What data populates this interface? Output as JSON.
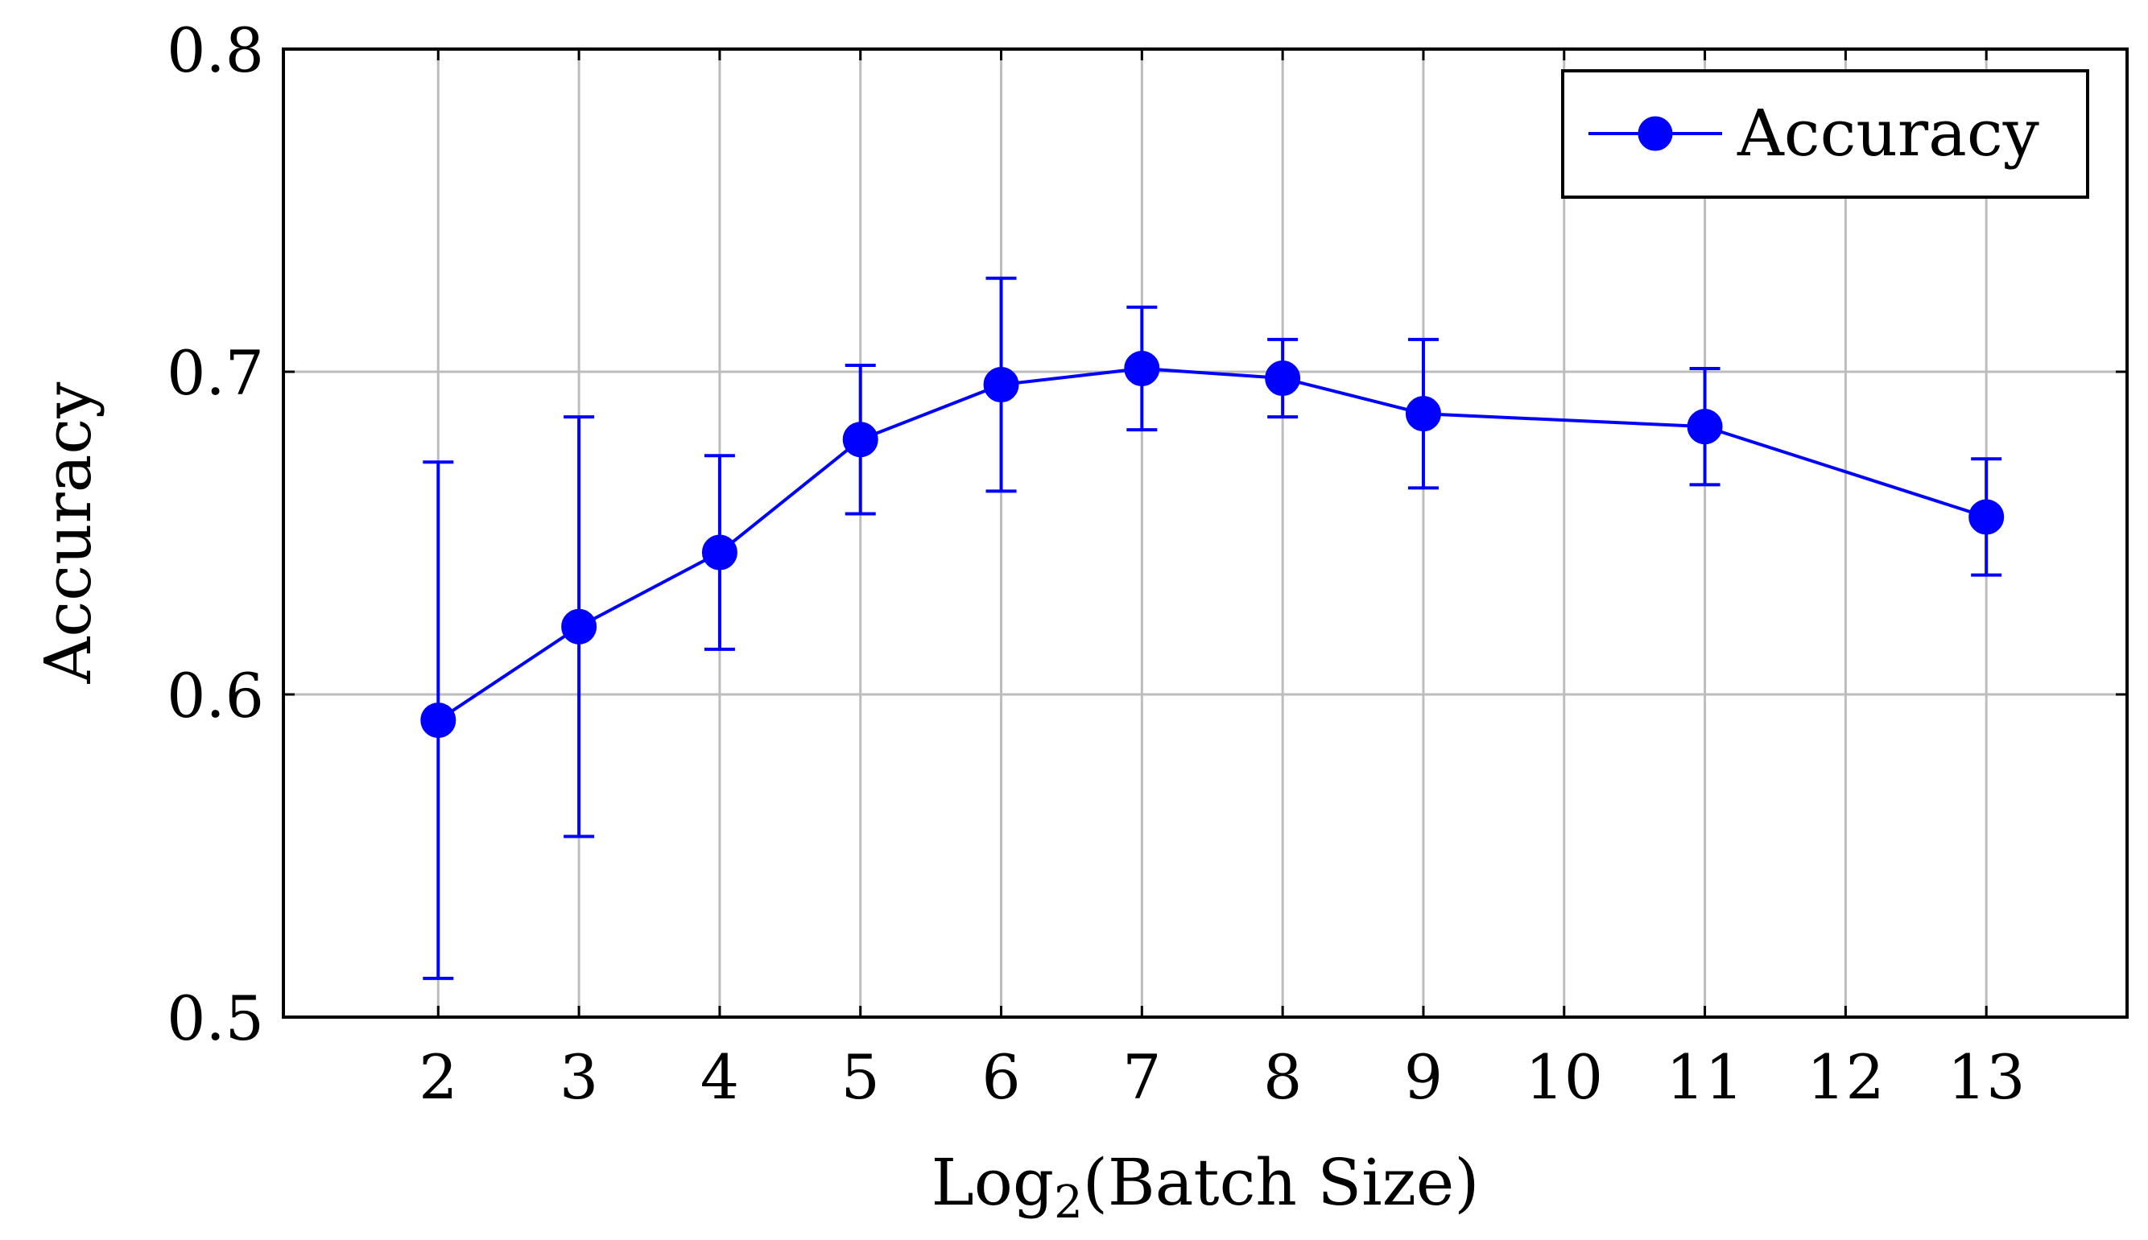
{
  "chart_data": {
    "type": "line",
    "title": "",
    "xlabel_main": "Log",
    "xlabel_sub": "2",
    "xlabel_rest": "(Batch Size)",
    "ylabel": "Accuracy",
    "xlim": [
      0.9,
      14.0
    ],
    "ylim": [
      0.5,
      0.8
    ],
    "x_ticks": [
      2,
      3,
      4,
      5,
      6,
      7,
      8,
      9,
      10,
      11,
      12,
      13
    ],
    "x_tick_labels": [
      "2",
      "3",
      "4",
      "5",
      "6",
      "7",
      "8",
      "9",
      "10",
      "11",
      "12",
      "13"
    ],
    "y_ticks": [
      0.5,
      0.6,
      0.7,
      0.8
    ],
    "y_tick_labels": [
      "0.5",
      "0.6",
      "0.7",
      "0.8"
    ],
    "grid": true,
    "legend_position": "top-right",
    "series": [
      {
        "name": "Accuracy",
        "color": "#0000ff",
        "x": [
          2,
          3,
          4,
          5,
          6,
          7,
          8,
          9,
          11,
          13
        ],
        "y": [
          0.592,
          0.621,
          0.644,
          0.679,
          0.696,
          0.701,
          0.698,
          0.687,
          0.683,
          0.655
        ],
        "err_low": [
          0.512,
          0.556,
          0.614,
          0.656,
          0.663,
          0.682,
          0.686,
          0.664,
          0.665,
          0.637
        ],
        "err_high": [
          0.672,
          0.686,
          0.674,
          0.702,
          0.729,
          0.72,
          0.71,
          0.71,
          0.701,
          0.673
        ]
      }
    ]
  }
}
